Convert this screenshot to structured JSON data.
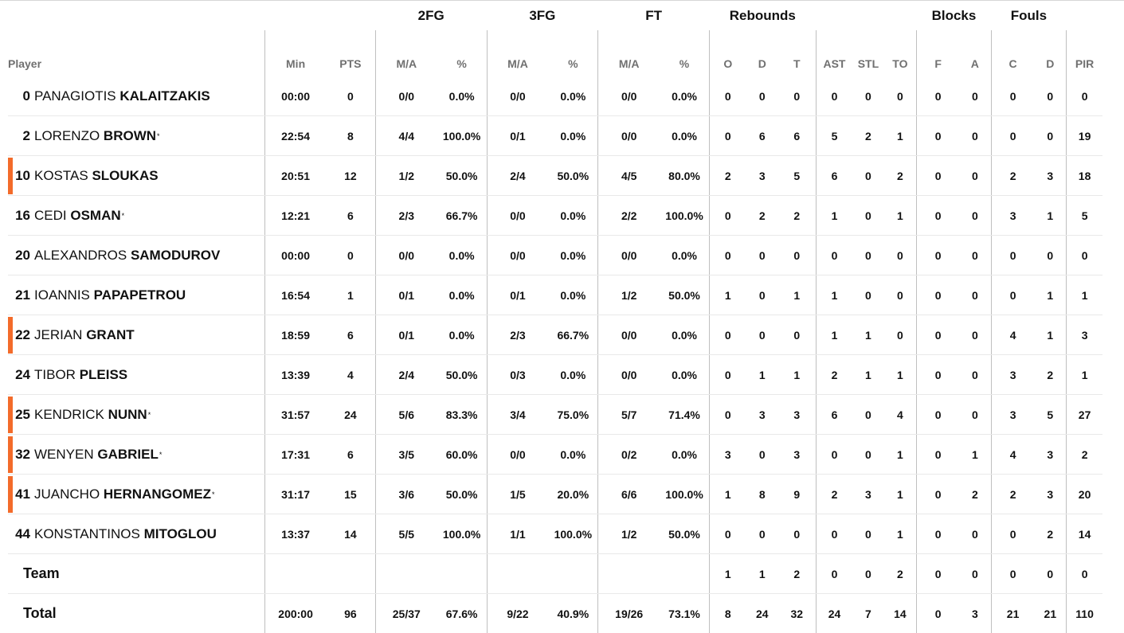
{
  "groups": {
    "fg2": "2FG",
    "fg3": "3FG",
    "ft": "FT",
    "reb": "Rebounds",
    "blk": "Blocks",
    "fouls": "Fouls"
  },
  "headers": {
    "player": "Player",
    "min": "Min",
    "pts": "PTS",
    "fg2_ma": "M/A",
    "fg2_pct": "%",
    "fg3_ma": "M/A",
    "fg3_pct": "%",
    "ft_ma": "M/A",
    "ft_pct": "%",
    "reb_o": "O",
    "reb_d": "D",
    "reb_t": "T",
    "ast": "AST",
    "stl": "STL",
    "to": "TO",
    "blk_f": "F",
    "blk_a": "A",
    "foul_c": "C",
    "foul_d": "D",
    "pir": "PIR"
  },
  "colors": {
    "marker": "#f36b2a"
  },
  "players": [
    {
      "num": "0",
      "first": "PANAGIOTIS",
      "last": "KALAITZAKIS",
      "star": "",
      "marked": false,
      "min": "00:00",
      "pts": "0",
      "fg2_ma": "0/0",
      "fg2_pct": "0.0%",
      "fg3_ma": "0/0",
      "fg3_pct": "0.0%",
      "ft_ma": "0/0",
      "ft_pct": "0.0%",
      "reb_o": "0",
      "reb_d": "0",
      "reb_t": "0",
      "ast": "0",
      "stl": "0",
      "to": "0",
      "blk_f": "0",
      "blk_a": "0",
      "foul_c": "0",
      "foul_d": "0",
      "pir": "0"
    },
    {
      "num": "2",
      "first": "LORENZO",
      "last": "BROWN",
      "star": "*",
      "marked": false,
      "min": "22:54",
      "pts": "8",
      "fg2_ma": "4/4",
      "fg2_pct": "100.0%",
      "fg3_ma": "0/1",
      "fg3_pct": "0.0%",
      "ft_ma": "0/0",
      "ft_pct": "0.0%",
      "reb_o": "0",
      "reb_d": "6",
      "reb_t": "6",
      "ast": "5",
      "stl": "2",
      "to": "1",
      "blk_f": "0",
      "blk_a": "0",
      "foul_c": "0",
      "foul_d": "0",
      "pir": "19"
    },
    {
      "num": "10",
      "first": "KOSTAS",
      "last": "SLOUKAS",
      "star": "",
      "marked": true,
      "min": "20:51",
      "pts": "12",
      "fg2_ma": "1/2",
      "fg2_pct": "50.0%",
      "fg3_ma": "2/4",
      "fg3_pct": "50.0%",
      "ft_ma": "4/5",
      "ft_pct": "80.0%",
      "reb_o": "2",
      "reb_d": "3",
      "reb_t": "5",
      "ast": "6",
      "stl": "0",
      "to": "2",
      "blk_f": "0",
      "blk_a": "0",
      "foul_c": "2",
      "foul_d": "3",
      "pir": "18"
    },
    {
      "num": "16",
      "first": "CEDI",
      "last": "OSMAN",
      "star": "*",
      "marked": false,
      "min": "12:21",
      "pts": "6",
      "fg2_ma": "2/3",
      "fg2_pct": "66.7%",
      "fg3_ma": "0/0",
      "fg3_pct": "0.0%",
      "ft_ma": "2/2",
      "ft_pct": "100.0%",
      "reb_o": "0",
      "reb_d": "2",
      "reb_t": "2",
      "ast": "1",
      "stl": "0",
      "to": "1",
      "blk_f": "0",
      "blk_a": "0",
      "foul_c": "3",
      "foul_d": "1",
      "pir": "5"
    },
    {
      "num": "20",
      "first": "ALEXANDROS",
      "last": "SAMODUROV",
      "star": "",
      "marked": false,
      "min": "00:00",
      "pts": "0",
      "fg2_ma": "0/0",
      "fg2_pct": "0.0%",
      "fg3_ma": "0/0",
      "fg3_pct": "0.0%",
      "ft_ma": "0/0",
      "ft_pct": "0.0%",
      "reb_o": "0",
      "reb_d": "0",
      "reb_t": "0",
      "ast": "0",
      "stl": "0",
      "to": "0",
      "blk_f": "0",
      "blk_a": "0",
      "foul_c": "0",
      "foul_d": "0",
      "pir": "0"
    },
    {
      "num": "21",
      "first": "IOANNIS",
      "last": "PAPAPETROU",
      "star": "",
      "marked": false,
      "min": "16:54",
      "pts": "1",
      "fg2_ma": "0/1",
      "fg2_pct": "0.0%",
      "fg3_ma": "0/1",
      "fg3_pct": "0.0%",
      "ft_ma": "1/2",
      "ft_pct": "50.0%",
      "reb_o": "1",
      "reb_d": "0",
      "reb_t": "1",
      "ast": "1",
      "stl": "0",
      "to": "0",
      "blk_f": "0",
      "blk_a": "0",
      "foul_c": "0",
      "foul_d": "1",
      "pir": "1"
    },
    {
      "num": "22",
      "first": "JERIAN",
      "last": "GRANT",
      "star": "",
      "marked": true,
      "min": "18:59",
      "pts": "6",
      "fg2_ma": "0/1",
      "fg2_pct": "0.0%",
      "fg3_ma": "2/3",
      "fg3_pct": "66.7%",
      "ft_ma": "0/0",
      "ft_pct": "0.0%",
      "reb_o": "0",
      "reb_d": "0",
      "reb_t": "0",
      "ast": "1",
      "stl": "1",
      "to": "0",
      "blk_f": "0",
      "blk_a": "0",
      "foul_c": "4",
      "foul_d": "1",
      "pir": "3"
    },
    {
      "num": "24",
      "first": "TIBOR",
      "last": "PLEISS",
      "star": "",
      "marked": false,
      "min": "13:39",
      "pts": "4",
      "fg2_ma": "2/4",
      "fg2_pct": "50.0%",
      "fg3_ma": "0/3",
      "fg3_pct": "0.0%",
      "ft_ma": "0/0",
      "ft_pct": "0.0%",
      "reb_o": "0",
      "reb_d": "1",
      "reb_t": "1",
      "ast": "2",
      "stl": "1",
      "to": "1",
      "blk_f": "0",
      "blk_a": "0",
      "foul_c": "3",
      "foul_d": "2",
      "pir": "1"
    },
    {
      "num": "25",
      "first": "KENDRICK",
      "last": "NUNN",
      "star": "*",
      "marked": true,
      "min": "31:57",
      "pts": "24",
      "fg2_ma": "5/6",
      "fg2_pct": "83.3%",
      "fg3_ma": "3/4",
      "fg3_pct": "75.0%",
      "ft_ma": "5/7",
      "ft_pct": "71.4%",
      "reb_o": "0",
      "reb_d": "3",
      "reb_t": "3",
      "ast": "6",
      "stl": "0",
      "to": "4",
      "blk_f": "0",
      "blk_a": "0",
      "foul_c": "3",
      "foul_d": "5",
      "pir": "27"
    },
    {
      "num": "32",
      "first": "WENYEN",
      "last": "GABRIEL",
      "star": "*",
      "marked": true,
      "min": "17:31",
      "pts": "6",
      "fg2_ma": "3/5",
      "fg2_pct": "60.0%",
      "fg3_ma": "0/0",
      "fg3_pct": "0.0%",
      "ft_ma": "0/2",
      "ft_pct": "0.0%",
      "reb_o": "3",
      "reb_d": "0",
      "reb_t": "3",
      "ast": "0",
      "stl": "0",
      "to": "1",
      "blk_f": "0",
      "blk_a": "1",
      "foul_c": "4",
      "foul_d": "3",
      "pir": "2"
    },
    {
      "num": "41",
      "first": "JUANCHO",
      "last": "HERNANGOMEZ",
      "star": "*",
      "marked": true,
      "min": "31:17",
      "pts": "15",
      "fg2_ma": "3/6",
      "fg2_pct": "50.0%",
      "fg3_ma": "1/5",
      "fg3_pct": "20.0%",
      "ft_ma": "6/6",
      "ft_pct": "100.0%",
      "reb_o": "1",
      "reb_d": "8",
      "reb_t": "9",
      "ast": "2",
      "stl": "3",
      "to": "1",
      "blk_f": "0",
      "blk_a": "2",
      "foul_c": "2",
      "foul_d": "3",
      "pir": "20"
    },
    {
      "num": "44",
      "first": "KONSTANTINOS",
      "last": "MITOGLOU",
      "star": "",
      "marked": false,
      "min": "13:37",
      "pts": "14",
      "fg2_ma": "5/5",
      "fg2_pct": "100.0%",
      "fg3_ma": "1/1",
      "fg3_pct": "100.0%",
      "ft_ma": "1/2",
      "ft_pct": "50.0%",
      "reb_o": "0",
      "reb_d": "0",
      "reb_t": "0",
      "ast": "0",
      "stl": "0",
      "to": "1",
      "blk_f": "0",
      "blk_a": "0",
      "foul_c": "0",
      "foul_d": "2",
      "pir": "14"
    }
  ],
  "team": {
    "label": "Team",
    "min": "",
    "pts": "",
    "fg2_ma": "",
    "fg2_pct": "",
    "fg3_ma": "",
    "fg3_pct": "",
    "ft_ma": "",
    "ft_pct": "",
    "reb_o": "1",
    "reb_d": "1",
    "reb_t": "2",
    "ast": "0",
    "stl": "0",
    "to": "2",
    "blk_f": "0",
    "blk_a": "0",
    "foul_c": "0",
    "foul_d": "0",
    "pir": "0"
  },
  "total": {
    "label": "Total",
    "min": "200:00",
    "pts": "96",
    "fg2_ma": "25/37",
    "fg2_pct": "67.6%",
    "fg3_ma": "9/22",
    "fg3_pct": "40.9%",
    "ft_ma": "19/26",
    "ft_pct": "73.1%",
    "reb_o": "8",
    "reb_d": "24",
    "reb_t": "32",
    "ast": "24",
    "stl": "7",
    "to": "14",
    "blk_f": "0",
    "blk_a": "3",
    "foul_c": "21",
    "foul_d": "21",
    "pir": "110"
  }
}
